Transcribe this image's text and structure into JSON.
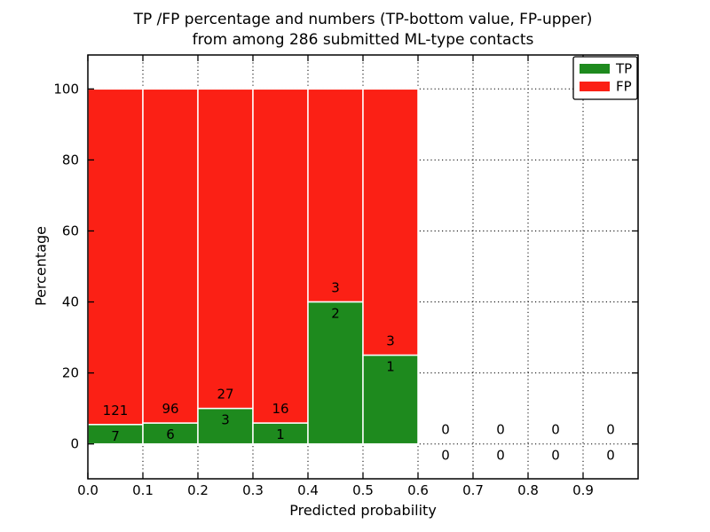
{
  "chart_data": {
    "type": "bar",
    "stacked": true,
    "title": "TP /FP percentage and numbers (TP-bottom value, FP-upper)\nfrom among 286 submitted ML-type contacts",
    "title_line1": "TP /FP percentage and numbers (TP-bottom value, FP-upper)",
    "title_line2": "from among 286 submitted ML-type contacts",
    "xlabel": "Predicted probability",
    "ylabel": "Percentage",
    "total_submitted_contacts": 286,
    "bin_width": 0.1,
    "bins": [
      {
        "x_start": 0.0,
        "tp_count": 7,
        "fp_count": 121,
        "tp_percent": 5.47,
        "fp_percent": 94.53,
        "stack_top_percent": 100
      },
      {
        "x_start": 0.1,
        "tp_count": 6,
        "fp_count": 96,
        "tp_percent": 5.88,
        "fp_percent": 94.12,
        "stack_top_percent": 100
      },
      {
        "x_start": 0.2,
        "tp_count": 3,
        "fp_count": 27,
        "tp_percent": 10.0,
        "fp_percent": 90.0,
        "stack_top_percent": 100
      },
      {
        "x_start": 0.3,
        "tp_count": 1,
        "fp_count": 16,
        "tp_percent": 5.88,
        "fp_percent": 94.12,
        "stack_top_percent": 100
      },
      {
        "x_start": 0.4,
        "tp_count": 2,
        "fp_count": 3,
        "tp_percent": 40.0,
        "fp_percent": 60.0,
        "stack_top_percent": 100
      },
      {
        "x_start": 0.5,
        "tp_count": 1,
        "fp_count": 3,
        "tp_percent": 25.0,
        "fp_percent": 75.0,
        "stack_top_percent": 100
      },
      {
        "x_start": 0.6,
        "tp_count": 0,
        "fp_count": 0,
        "tp_percent": 0,
        "fp_percent": 0,
        "stack_top_percent": 0
      },
      {
        "x_start": 0.7,
        "tp_count": 0,
        "fp_count": 0,
        "tp_percent": 0,
        "fp_percent": 0,
        "stack_top_percent": 0
      },
      {
        "x_start": 0.8,
        "tp_count": 0,
        "fp_count": 0,
        "tp_percent": 0,
        "fp_percent": 0,
        "stack_top_percent": 0
      },
      {
        "x_start": 0.9,
        "tp_count": 0,
        "fp_count": 0,
        "tp_percent": 0,
        "fp_percent": 0,
        "stack_top_percent": 0
      }
    ],
    "xticks": [
      "0.0",
      "0.1",
      "0.2",
      "0.3",
      "0.4",
      "0.5",
      "0.6",
      "0.7",
      "0.8",
      "0.9"
    ],
    "yticks": [
      "0",
      "20",
      "40",
      "60",
      "80",
      "100"
    ],
    "xlim": [
      0.0,
      1.0
    ],
    "ylim": [
      -9.8,
      109.5
    ],
    "grid": "dotted",
    "legend_position": "upper right",
    "legend": [
      {
        "label": "TP",
        "color": "#1e8a1e"
      },
      {
        "label": "FP",
        "color": "#fb2015"
      }
    ],
    "colors": {
      "tp": "#1e8a1e",
      "fp": "#fb2015",
      "bar_edge": "#ffffff",
      "grid": "#000000",
      "frame": "#000000",
      "text": "#000000",
      "legend_bg": "#ffffff"
    }
  }
}
